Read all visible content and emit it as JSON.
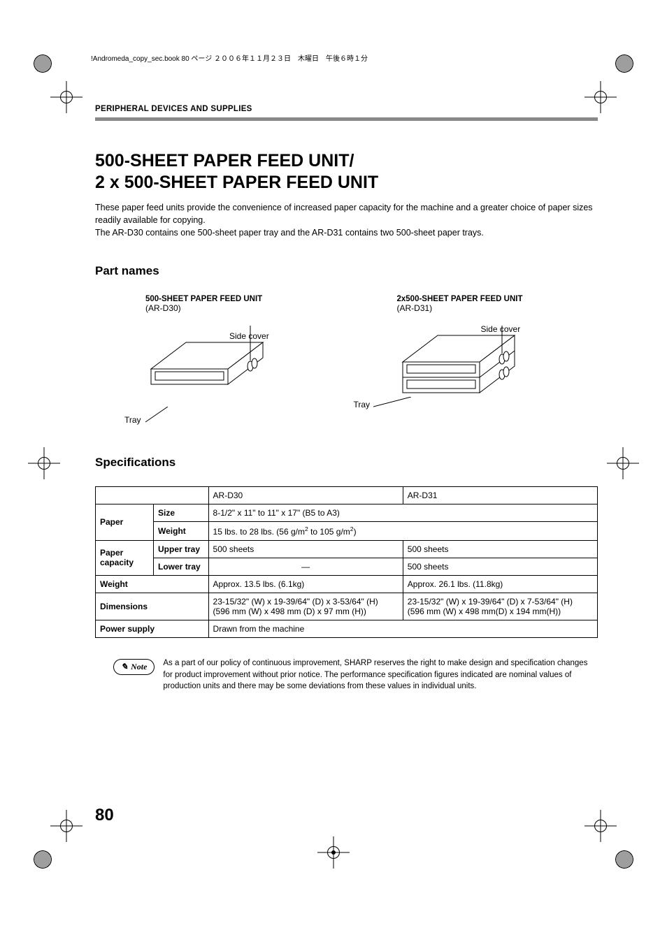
{
  "header_line": "!Andromeda_copy_sec.book  80 ページ  ２００６年１１月２３日　木曜日　午後６時１分",
  "breadcrumb": "PERIPHERAL DEVICES AND SUPPLIES",
  "title_line1": "500-SHEET PAPER FEED UNIT/",
  "title_line2": "2 x 500-SHEET PAPER FEED UNIT",
  "intro_p1": "These paper feed units provide the convenience of increased paper capacity for the machine and a greater choice of paper sizes readily available for copying.",
  "intro_p2": "The AR-D30 contains one 500-sheet paper tray and the AR-D31 contains two 500-sheet paper trays.",
  "part_names_heading": "Part names",
  "unit1": {
    "title": "500-SHEET PAPER FEED UNIT",
    "model": "(AR-D30)",
    "side_cover": "Side cover",
    "tray": "Tray"
  },
  "unit2": {
    "title": "2x500-SHEET PAPER FEED UNIT",
    "model": "(AR-D31)",
    "side_cover": "Side cover",
    "tray": "Tray"
  },
  "spec_heading": "Specifications",
  "table": {
    "col_ar_d30": "AR-D30",
    "col_ar_d31": "AR-D31",
    "paper": "Paper",
    "size": "Size",
    "size_val": "8-1/2\" x 11\"  to 11\" x 17\" (B5 to A3)",
    "weight_lbl": "Weight",
    "weight_val_html": "15 lbs. to 28 lbs. (56 g/m<sup>2</sup> to 105 g/m<sup>2</sup>)",
    "paper_capacity": "Paper capacity",
    "upper_tray": "Upper tray",
    "lower_tray": "Lower tray",
    "sheets500": "500 sheets",
    "dash": "—",
    "weight_row": "Weight",
    "weight_d30": "Approx. 13.5 lbs. (6.1kg)",
    "weight_d31": "Approx. 26.1 lbs. (11.8kg)",
    "dimensions": "Dimensions",
    "dim_d30_l1": "23-15/32\" (W) x 19-39/64\" (D) x 3-53/64\" (H)",
    "dim_d30_l2": "(596 mm (W) x 498 mm (D) x 97 mm (H))",
    "dim_d31_l1": "23-15/32\" (W) x 19-39/64\" (D) x 7-53/64\" (H)",
    "dim_d31_l2": "(596 mm (W) x 498 mm(D) x 194 mm(H))",
    "power_supply": "Power supply",
    "power_val": "Drawn from the machine"
  },
  "note_label": "Note",
  "note_text": "As a part of our policy of continuous improvement, SHARP reserves the right to make design and specification changes for product improvement without prior notice. The performance specification figures indicated are nominal values of production units and there may be some deviations from these values in individual units.",
  "page_number": "80",
  "diagram_style": {
    "stroke": "#000000",
    "stroke_width": 1,
    "fill": "#ffffff"
  }
}
